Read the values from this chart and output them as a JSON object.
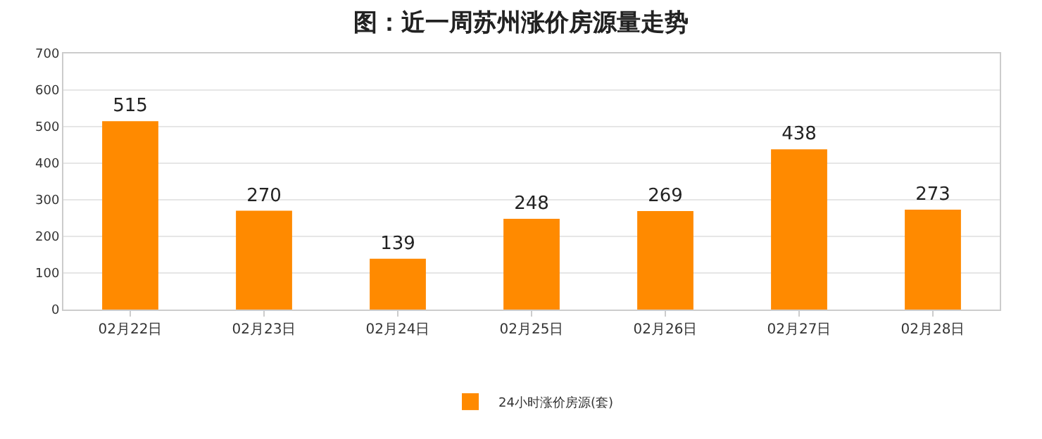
{
  "chart_data": {
    "type": "bar",
    "title": "图：近一周苏州涨价房源量走势",
    "categories": [
      "02月22日",
      "02月23日",
      "02月24日",
      "02月25日",
      "02月26日",
      "02月27日",
      "02月28日"
    ],
    "series": [
      {
        "name": "24小时涨价房源(套)",
        "color": "#ff8a00",
        "values": [
          515,
          270,
          139,
          248,
          269,
          438,
          273
        ]
      }
    ],
    "ylim": [
      0,
      700
    ],
    "yticks": [
      0,
      100,
      200,
      300,
      400,
      500,
      600,
      700
    ],
    "grid": "y",
    "legend": "bottom",
    "data_labels": true
  }
}
